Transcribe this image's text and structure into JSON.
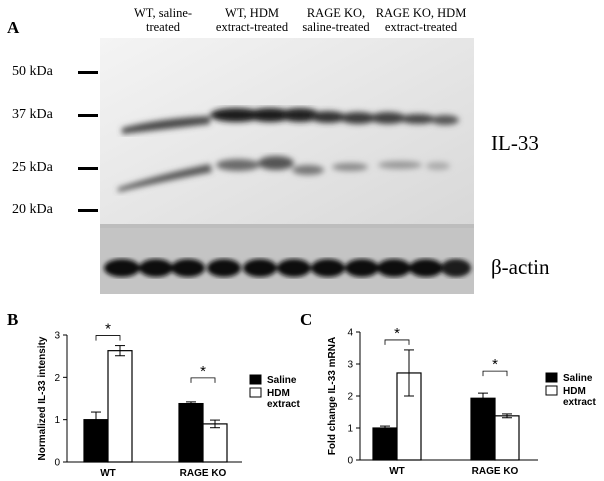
{
  "panel_a": {
    "letter": "A",
    "lanes": [
      {
        "line1": "WT, saline-",
        "line2": "treated"
      },
      {
        "line1": "WT, HDM",
        "line2": "extract-treated"
      },
      {
        "line1": "RAGE KO,",
        "line2": "saline-treated"
      },
      {
        "line1": "RAGE KO, HDM",
        "line2": "extract-treated"
      }
    ],
    "markers": [
      "50 kDa",
      "37 kDa",
      "25 kDa",
      "20 kDa"
    ],
    "blot_label": "IL-33",
    "actin_label": "β-actin"
  },
  "chart_data": [
    {
      "panel": "B",
      "type": "bar",
      "ylabel": "Normalized IL-33  intensity",
      "categories": [
        "WT",
        "RAGE KO"
      ],
      "yticks": [
        "0",
        "1",
        "2",
        "3"
      ],
      "ylim": [
        0,
        3
      ],
      "legend_position": "right",
      "series": [
        {
          "name": "Saline",
          "color": "#000000",
          "values": [
            1.0,
            1.38
          ],
          "errors": [
            0.18,
            0.04
          ]
        },
        {
          "name": "HDM extract",
          "color": "#ffffff",
          "values": [
            2.63,
            0.9
          ],
          "errors": [
            0.12,
            0.09
          ]
        }
      ],
      "significance": [
        "*",
        "*"
      ]
    },
    {
      "panel": "C",
      "type": "bar",
      "ylabel": "Fold change IL-33 mRNA",
      "categories": [
        "WT",
        "RAGE KO"
      ],
      "yticks": [
        "0",
        "1",
        "2",
        "3",
        "4"
      ],
      "ylim": [
        0,
        4
      ],
      "legend_position": "right",
      "series": [
        {
          "name": "Saline",
          "color": "#000000",
          "values": [
            1.0,
            1.93
          ],
          "errors": [
            0.06,
            0.16
          ]
        },
        {
          "name": "HDM extract",
          "color": "#ffffff",
          "values": [
            2.72,
            1.38
          ],
          "errors": [
            0.72,
            0.06
          ]
        }
      ],
      "significance": [
        "*",
        "*"
      ]
    }
  ]
}
